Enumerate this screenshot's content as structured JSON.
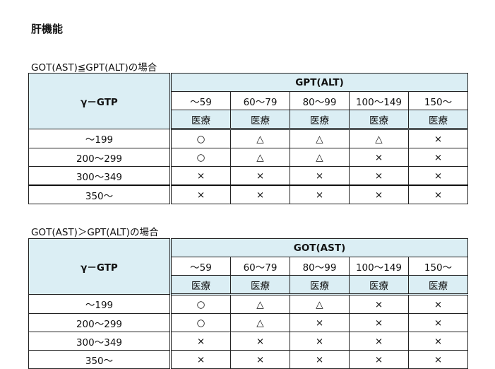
{
  "title": "肝機能",
  "tables": [
    {
      "caption": "GOT(AST)≦GPT(ALT)の場合",
      "row_header": "γ－GTP",
      "col_group": "GPT(ALT)",
      "cols": [
        "～59",
        "60～79",
        "80～99",
        "100～149",
        "150～"
      ],
      "sub": "医療",
      "rows": [
        {
          "label": "～199",
          "cells": [
            "○",
            "△",
            "△",
            "△",
            "×"
          ]
        },
        {
          "label": "200～299",
          "cells": [
            "○",
            "△",
            "△",
            "×",
            "×"
          ]
        },
        {
          "label": "300～349",
          "cells": [
            "×",
            "×",
            "×",
            "×",
            "×"
          ]
        },
        {
          "label": "350～",
          "cells": [
            "×",
            "×",
            "×",
            "×",
            "×"
          ]
        }
      ]
    },
    {
      "caption": "GOT(AST)＞GPT(ALT)の場合",
      "row_header": "γ－GTP",
      "col_group": "GOT(AST)",
      "cols": [
        "～59",
        "60～79",
        "80～99",
        "100～149",
        "150～"
      ],
      "sub": "医療",
      "rows": [
        {
          "label": "～199",
          "cells": [
            "○",
            "△",
            "△",
            "×",
            "×"
          ]
        },
        {
          "label": "200～299",
          "cells": [
            "○",
            "△",
            "×",
            "×",
            "×"
          ]
        },
        {
          "label": "300～349",
          "cells": [
            "×",
            "×",
            "×",
            "×",
            "×"
          ]
        },
        {
          "label": "350～",
          "cells": [
            "×",
            "×",
            "×",
            "×",
            "×"
          ]
        }
      ]
    }
  ],
  "colors": {
    "header_bg": "#dbeef4"
  }
}
